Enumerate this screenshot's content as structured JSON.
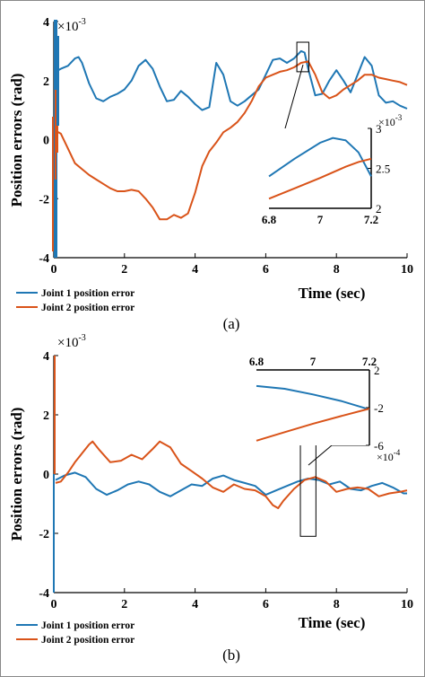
{
  "colors": {
    "series1": "#1f77b4",
    "series2": "#d95319",
    "axis": "#000000",
    "border": "#888888"
  },
  "chart_data": [
    {
      "id": "a",
      "type": "line",
      "panel_label": "(a)",
      "xlabel": "Time (sec)",
      "ylabel": "Position errors (rad)",
      "exponent_label": "×10",
      "exponent_power": "-3",
      "xlim": [
        0,
        10
      ],
      "ylim": [
        -4,
        4
      ],
      "xticks": [
        "0",
        "2",
        "4",
        "6",
        "8",
        "10"
      ],
      "yticks": [
        "-4",
        "-2",
        "0",
        "2",
        "4"
      ],
      "legend_position": "bottom-left",
      "series": [
        {
          "name": "Joint 1 position error",
          "x": [
            0.05,
            0.2,
            0.4,
            0.6,
            0.7,
            0.8,
            1.0,
            1.2,
            1.4,
            1.6,
            1.8,
            2.0,
            2.2,
            2.4,
            2.6,
            2.8,
            3.0,
            3.2,
            3.4,
            3.6,
            3.8,
            4.0,
            4.2,
            4.4,
            4.6,
            4.8,
            5.0,
            5.2,
            5.4,
            5.6,
            5.8,
            6.0,
            6.2,
            6.4,
            6.6,
            6.8,
            7.0,
            7.1,
            7.2,
            7.4,
            7.6,
            7.8,
            8.0,
            8.2,
            8.4,
            8.6,
            8.8,
            9.0,
            9.2,
            9.4,
            9.6,
            9.8,
            10.0
          ],
          "y": [
            2.3,
            2.4,
            2.5,
            2.75,
            2.8,
            2.6,
            1.9,
            1.4,
            1.3,
            1.45,
            1.55,
            1.7,
            2.0,
            2.5,
            2.7,
            2.4,
            1.8,
            1.3,
            1.35,
            1.65,
            1.45,
            1.2,
            1.0,
            1.1,
            2.6,
            2.2,
            1.3,
            1.15,
            1.3,
            1.5,
            1.7,
            2.2,
            2.7,
            2.75,
            2.6,
            2.75,
            3.0,
            2.95,
            2.4,
            1.5,
            1.55,
            2.0,
            2.35,
            2.0,
            1.6,
            2.2,
            2.8,
            2.5,
            1.5,
            1.25,
            1.3,
            1.15,
            1.05
          ]
        },
        {
          "name": "Joint 2 position error",
          "x": [
            0.05,
            0.2,
            0.4,
            0.6,
            0.8,
            1.0,
            1.2,
            1.4,
            1.6,
            1.8,
            2.0,
            2.2,
            2.4,
            2.6,
            2.8,
            3.0,
            3.2,
            3.4,
            3.6,
            3.8,
            4.0,
            4.2,
            4.4,
            4.6,
            4.8,
            5.0,
            5.2,
            5.4,
            5.6,
            5.8,
            6.0,
            6.2,
            6.4,
            6.6,
            6.8,
            7.0,
            7.2,
            7.4,
            7.6,
            7.8,
            8.0,
            8.2,
            8.4,
            8.6,
            8.8,
            9.0,
            9.2,
            9.4,
            9.6,
            9.8,
            10.0
          ],
          "y": [
            0.3,
            0.2,
            -0.3,
            -0.8,
            -1.0,
            -1.2,
            -1.35,
            -1.5,
            -1.65,
            -1.75,
            -1.75,
            -1.7,
            -1.75,
            -2.0,
            -2.3,
            -2.7,
            -2.7,
            -2.55,
            -2.65,
            -2.5,
            -1.8,
            -0.9,
            -0.4,
            -0.1,
            0.25,
            0.4,
            0.6,
            0.9,
            1.3,
            1.8,
            2.1,
            2.2,
            2.3,
            2.35,
            2.45,
            2.6,
            2.65,
            2.2,
            1.6,
            1.4,
            1.5,
            1.7,
            1.85,
            2.0,
            2.2,
            2.2,
            2.1,
            2.05,
            2.0,
            1.95,
            1.85
          ]
        }
      ],
      "inset": {
        "xlim": [
          6.8,
          7.2
        ],
        "ylim": [
          2.0,
          3.0
        ],
        "xticks": [
          "6.8",
          "7",
          "7.2"
        ],
        "yticks": [
          "2",
          "2.5",
          "3"
        ],
        "exponent_label": "×10",
        "exponent_power": "-3",
        "series1": {
          "x": [
            6.8,
            6.9,
            7.0,
            7.05,
            7.1,
            7.15,
            7.2
          ],
          "y": [
            2.4,
            2.62,
            2.82,
            2.88,
            2.85,
            2.7,
            2.4
          ]
        },
        "series2": {
          "x": [
            6.8,
            6.9,
            7.0,
            7.1,
            7.15,
            7.2
          ],
          "y": [
            2.12,
            2.25,
            2.38,
            2.52,
            2.58,
            2.62
          ]
        }
      }
    },
    {
      "id": "b",
      "type": "line",
      "panel_label": "(b)",
      "xlabel": "Time (sec)",
      "ylabel": "Position errors (rad)",
      "exponent_label": "×10",
      "exponent_power": "-3",
      "xlim": [
        0,
        10
      ],
      "ylim": [
        -4,
        4
      ],
      "xticks": [
        "0",
        "2",
        "4",
        "6",
        "8",
        "10"
      ],
      "yticks": [
        "-4",
        "-2",
        "0",
        "2",
        "4"
      ],
      "legend_position": "bottom-left",
      "series": [
        {
          "name": "Joint 1 position error",
          "x": [
            0.05,
            0.3,
            0.6,
            0.9,
            1.2,
            1.5,
            1.8,
            2.1,
            2.4,
            2.7,
            3.0,
            3.3,
            3.6,
            3.9,
            4.2,
            4.5,
            4.8,
            5.1,
            5.4,
            5.7,
            6.0,
            6.3,
            6.6,
            6.9,
            7.2,
            7.5,
            7.8,
            8.1,
            8.4,
            8.7,
            9.0,
            9.3,
            9.6,
            9.9,
            10.0
          ],
          "y": [
            -0.2,
            -0.05,
            0.05,
            -0.1,
            -0.5,
            -0.7,
            -0.55,
            -0.35,
            -0.25,
            -0.35,
            -0.6,
            -0.75,
            -0.55,
            -0.35,
            -0.4,
            -0.15,
            -0.05,
            -0.2,
            -0.3,
            -0.4,
            -0.7,
            -0.55,
            -0.4,
            -0.25,
            -0.15,
            -0.2,
            -0.35,
            -0.25,
            -0.5,
            -0.55,
            -0.4,
            -0.3,
            -0.45,
            -0.65,
            -0.65
          ]
        },
        {
          "name": "Joint 2 position error",
          "x": [
            0.05,
            0.2,
            0.4,
            0.6,
            0.8,
            1.0,
            1.1,
            1.3,
            1.6,
            1.9,
            2.2,
            2.5,
            2.8,
            3.0,
            3.3,
            3.6,
            3.9,
            4.2,
            4.5,
            4.8,
            5.1,
            5.4,
            5.7,
            6.0,
            6.2,
            6.35,
            6.5,
            6.8,
            7.1,
            7.4,
            7.7,
            8.0,
            8.3,
            8.6,
            8.9,
            9.2,
            9.5,
            9.8,
            10.0
          ],
          "y": [
            -0.3,
            -0.25,
            0.05,
            0.4,
            0.7,
            1.0,
            1.1,
            0.8,
            0.4,
            0.45,
            0.65,
            0.5,
            0.85,
            1.1,
            0.9,
            0.35,
            0.1,
            -0.15,
            -0.45,
            -0.6,
            -0.35,
            -0.5,
            -0.55,
            -0.75,
            -1.05,
            -1.15,
            -0.9,
            -0.5,
            -0.2,
            -0.1,
            -0.25,
            -0.6,
            -0.5,
            -0.45,
            -0.5,
            -0.75,
            -0.65,
            -0.6,
            -0.55
          ]
        }
      ],
      "inset": {
        "xlim": [
          6.8,
          7.2
        ],
        "ylim": [
          -6,
          2
        ],
        "xticks": [
          "6.8",
          "7",
          "7.2"
        ],
        "yticks": [
          "2",
          "-2",
          "-6"
        ],
        "exponent_label": "×10",
        "exponent_power": "-4",
        "series1": {
          "x": [
            6.8,
            6.9,
            7.0,
            7.1,
            7.2
          ],
          "y": [
            0.3,
            0.0,
            -0.6,
            -1.3,
            -2.2
          ]
        },
        "series2": {
          "x": [
            6.8,
            6.9,
            7.0,
            7.1,
            7.2
          ],
          "y": [
            -5.5,
            -4.6,
            -3.7,
            -2.9,
            -2.1
          ]
        }
      }
    }
  ]
}
